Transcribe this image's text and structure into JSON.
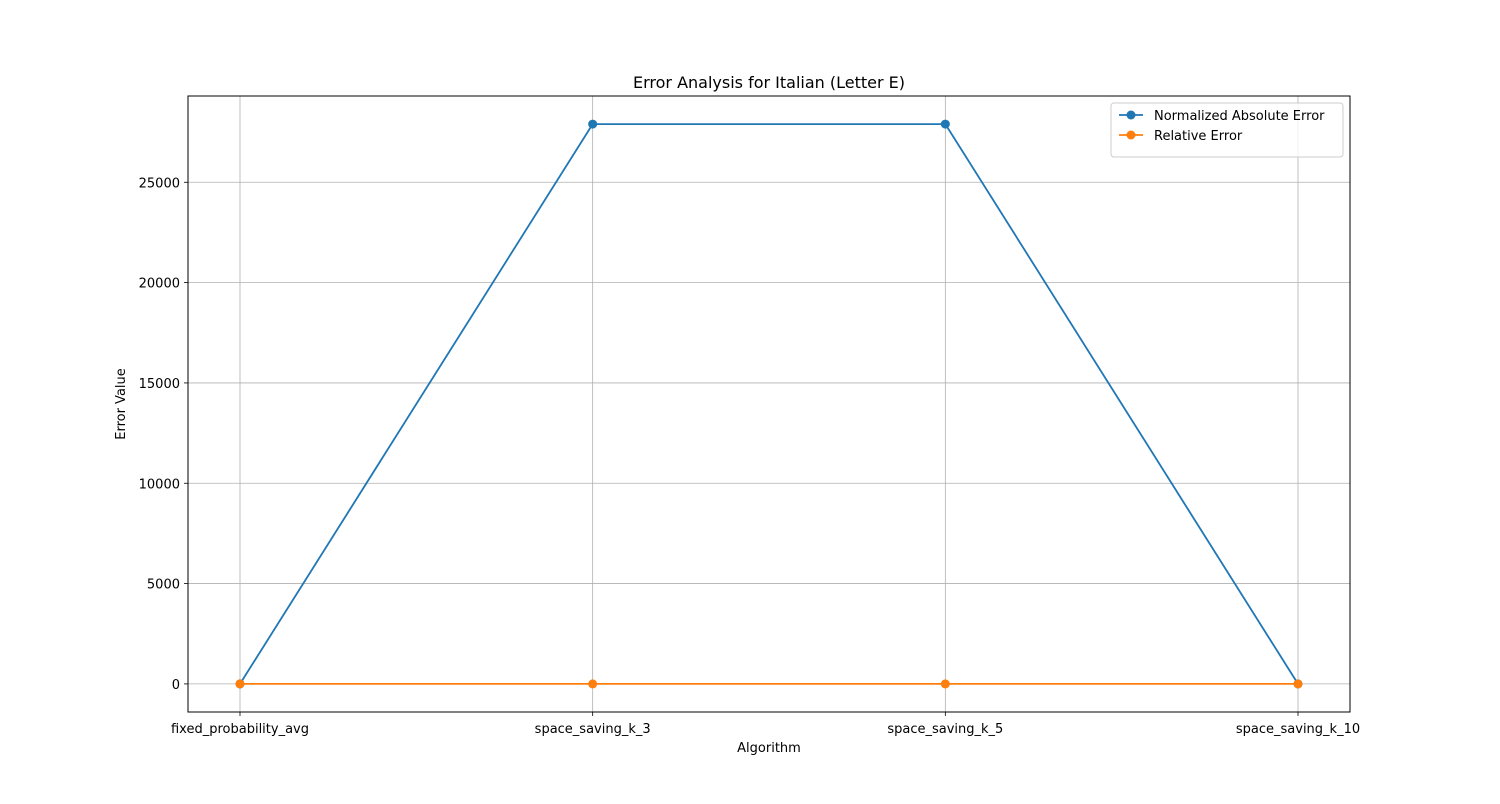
{
  "chart_data": {
    "type": "line",
    "title": "Error Analysis for Italian (Letter E)",
    "xlabel": "Algorithm",
    "ylabel": "Error Value",
    "categories": [
      "fixed_probability_avg",
      "space_saving_k_3",
      "space_saving_k_5",
      "space_saving_k_10"
    ],
    "series": [
      {
        "name": "Normalized Absolute Error",
        "values": [
          0,
          27900,
          27900,
          0
        ],
        "color": "#1f77b4"
      },
      {
        "name": "Relative Error",
        "values": [
          0,
          0,
          0,
          0
        ],
        "color": "#ff7f0e"
      }
    ],
    "ylim": [
      -1400,
      29300
    ],
    "yticks": [
      0,
      5000,
      10000,
      15000,
      20000,
      25000
    ],
    "grid": true,
    "legend_position": "upper right",
    "marker": "circle"
  }
}
